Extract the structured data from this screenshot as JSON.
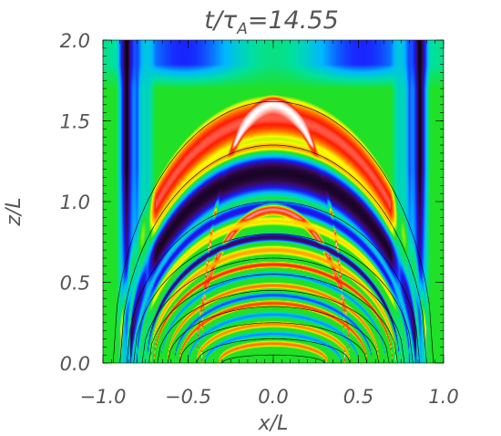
{
  "chart_data": {
    "type": "heatmap",
    "title": "t/τ_A=14.55",
    "xlabel": "x/L",
    "ylabel": "z/L",
    "xlim": [
      -1.0,
      1.0
    ],
    "ylim": [
      0.0,
      2.0
    ],
    "x_ticks": [
      -1.0,
      -0.5,
      0.0,
      0.5,
      1.0
    ],
    "x_tick_labels": [
      "−1.0",
      "−0.5",
      "0.0",
      "0.5",
      "1.0"
    ],
    "y_ticks": [
      0.0,
      0.5,
      1.0,
      1.5,
      2.0
    ],
    "y_tick_labels": [
      "0.0",
      "0.5",
      "1.0",
      "1.5",
      "2.0"
    ],
    "colormap": "rainbow",
    "colormap_colors": [
      "#000000",
      "#3a0a5a",
      "#1a1aff",
      "#00b8ff",
      "#00e0a0",
      "#22e022",
      "#ffff00",
      "#ff8800",
      "#ff1a00",
      "#ffffff"
    ],
    "background_level": 0.55,
    "overlay_contours": {
      "description_color": "#000000",
      "apex_heights": [
        0.05,
        0.15,
        0.25,
        0.35,
        0.45,
        0.55,
        0.65,
        0.8,
        1.0,
        1.35,
        1.62
      ],
      "half_widths": [
        0.3,
        0.45,
        0.55,
        0.62,
        0.68,
        0.73,
        0.77,
        0.82,
        0.86,
        0.9,
        0.94
      ]
    },
    "bands": [
      {
        "z_apex": 1.52,
        "half_width": 0.9,
        "level": 0.92,
        "thickness": 0.14
      },
      {
        "z_apex": 1.6,
        "half_width": 0.42,
        "level": 1.0,
        "thickness": 0.06
      },
      {
        "z_apex": 1.3,
        "half_width": 0.86,
        "level": 0.8,
        "thickness": 0.1
      },
      {
        "z_apex": 1.18,
        "half_width": 0.84,
        "level": 0.05,
        "thickness": 0.16
      },
      {
        "z_apex": 0.97,
        "half_width": 0.8,
        "level": 0.2,
        "thickness": 0.05
      },
      {
        "z_apex": 0.95,
        "half_width": 0.45,
        "level": 0.95,
        "thickness": 0.04
      },
      {
        "z_apex": 0.88,
        "half_width": 0.78,
        "level": 0.7,
        "thickness": 0.03
      },
      {
        "z_apex": 0.78,
        "half_width": 0.74,
        "level": 0.1,
        "thickness": 0.03
      },
      {
        "z_apex": 0.7,
        "half_width": 0.72,
        "level": 0.75,
        "thickness": 0.03
      },
      {
        "z_apex": 0.61,
        "half_width": 0.7,
        "level": 0.88,
        "thickness": 0.02
      },
      {
        "z_apex": 0.55,
        "half_width": 0.66,
        "level": 0.3,
        "thickness": 0.02
      },
      {
        "z_apex": 0.48,
        "half_width": 0.62,
        "level": 0.8,
        "thickness": 0.02
      },
      {
        "z_apex": 0.42,
        "half_width": 0.58,
        "level": 0.25,
        "thickness": 0.02
      },
      {
        "z_apex": 0.37,
        "half_width": 0.55,
        "level": 0.85,
        "thickness": 0.02
      },
      {
        "z_apex": 0.3,
        "half_width": 0.5,
        "level": 0.3,
        "thickness": 0.02
      },
      {
        "z_apex": 0.24,
        "half_width": 0.45,
        "level": 0.78,
        "thickness": 0.02
      },
      {
        "z_apex": 0.18,
        "half_width": 0.4,
        "level": 0.3,
        "thickness": 0.02
      },
      {
        "z_apex": 0.12,
        "half_width": 0.32,
        "level": 0.8,
        "thickness": 0.02
      }
    ],
    "side_strips": [
      {
        "x": -0.86,
        "level": 0.0,
        "width": 0.06
      },
      {
        "x": 0.86,
        "level": 0.0,
        "width": 0.06
      },
      {
        "x": -0.8,
        "level": 0.25,
        "width": 0.05
      },
      {
        "x": 0.8,
        "level": 0.25,
        "width": 0.05
      },
      {
        "x": -0.74,
        "level": 0.38,
        "width": 0.05
      },
      {
        "x": 0.74,
        "level": 0.38,
        "width": 0.05
      }
    ],
    "upper_region": {
      "level": 0.35,
      "z_from": 1.7,
      "z_to": 2.0
    },
    "grid": false,
    "legend": "none"
  }
}
